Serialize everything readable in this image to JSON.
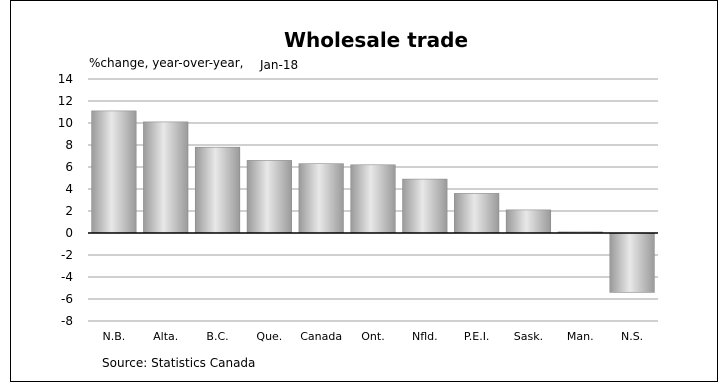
{
  "chart_data": {
    "type": "bar",
    "title": "Wholesale trade",
    "subtitle": "%change, year-over-year,",
    "period": "Jan-18",
    "xlabel": "",
    "ylabel": "",
    "ylim": [
      -8,
      14
    ],
    "y_ticks": [
      "14",
      "12",
      "10",
      "8",
      "6",
      "4",
      "2",
      "0",
      "-2",
      "-4",
      "-6",
      "-8"
    ],
    "grid": true,
    "legend": "none",
    "categories": [
      "N.B.",
      "Alta.",
      "B.C.",
      "Que.",
      "Canada",
      "Ont.",
      "Nfld.",
      "P.E.I.",
      "Sask.",
      "Man.",
      "N.S."
    ],
    "values": [
      11.1,
      10.1,
      7.8,
      6.6,
      6.3,
      6.2,
      4.9,
      3.6,
      2.1,
      0.1,
      -5.4
    ],
    "source": "Source: Statistics Canada",
    "colors": {
      "bar_light": "#e8e8e8",
      "bar_dark": "#9a9a9a",
      "grid": "#a0a0a0",
      "zero_line": "#000000"
    }
  }
}
